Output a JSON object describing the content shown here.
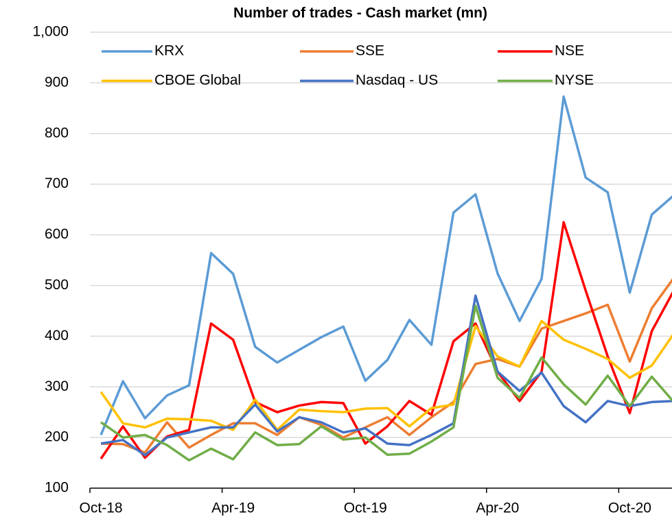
{
  "chart_data": {
    "type": "line",
    "title": "Number of trades - Cash market (mn)",
    "categories": [
      "Oct-18",
      null,
      null,
      null,
      null,
      null,
      "Apr-19",
      null,
      null,
      null,
      null,
      null,
      "Oct-19",
      null,
      null,
      null,
      null,
      null,
      "Apr-20",
      null,
      null,
      null,
      null,
      null,
      "Oct-20",
      null,
      null
    ],
    "series": [
      {
        "name": "KRX",
        "color": "#5b9bd5",
        "values": [
          205,
          311,
          238,
          283,
          303,
          564,
          523,
          379,
          348,
          373,
          398,
          419,
          312,
          353,
          432,
          383,
          644,
          680,
          524,
          430,
          513,
          873,
          713,
          684,
          486,
          640,
          678
        ]
      },
      {
        "name": "SSE",
        "color": "#ed7d31",
        "values": [
          188,
          187,
          170,
          230,
          180,
          205,
          228,
          228,
          205,
          240,
          225,
          200,
          220,
          240,
          205,
          240,
          270,
          345,
          355,
          340,
          415,
          430,
          445,
          462,
          350,
          455,
          515
        ]
      },
      {
        "name": "NSE",
        "color": "#ff0000",
        "values": [
          158,
          222,
          160,
          202,
          215,
          425,
          393,
          270,
          250,
          263,
          270,
          268,
          188,
          222,
          272,
          245,
          390,
          425,
          330,
          272,
          330,
          625,
          490,
          360,
          248,
          410,
          490
        ]
      },
      {
        "name": "CBOE Global",
        "color": "#ffc000",
        "values": [
          290,
          228,
          220,
          237,
          236,
          233,
          215,
          275,
          215,
          255,
          252,
          250,
          257,
          258,
          222,
          258,
          265,
          420,
          360,
          340,
          430,
          393,
          375,
          355,
          318,
          342,
          405
        ]
      },
      {
        "name": "Nasdaq - US",
        "color": "#4472c4",
        "values": [
          188,
          195,
          165,
          200,
          210,
          220,
          220,
          265,
          212,
          240,
          230,
          210,
          218,
          188,
          185,
          205,
          228,
          480,
          330,
          292,
          328,
          262,
          230,
          272,
          262,
          270,
          272
        ]
      },
      {
        "name": "NYSE",
        "color": "#70ad47",
        "values": [
          230,
          200,
          205,
          185,
          155,
          178,
          157,
          210,
          185,
          187,
          222,
          196,
          200,
          166,
          168,
          192,
          220,
          460,
          318,
          278,
          358,
          305,
          265,
          322,
          262,
          320,
          270
        ]
      }
    ],
    "ylim": [
      100,
      1000
    ],
    "yticks": [
      100,
      200,
      300,
      400,
      500,
      600,
      700,
      800,
      900,
      {
        "value": 1000,
        "label": "1,000"
      }
    ],
    "grid": true,
    "legend": "top"
  }
}
